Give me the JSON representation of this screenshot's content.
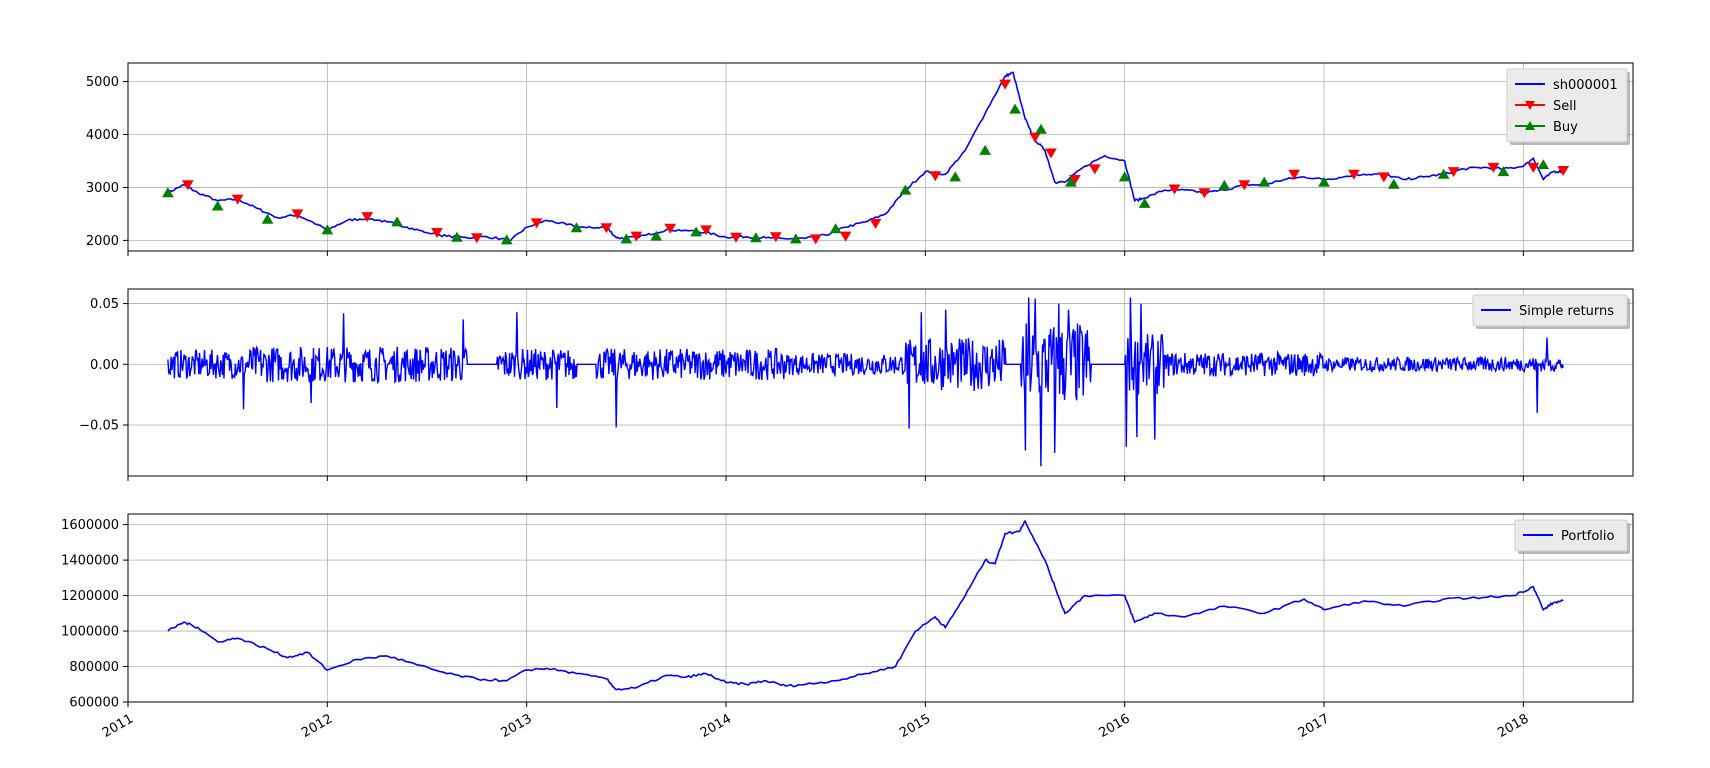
{
  "chart_data": [
    {
      "type": "line",
      "panel": "price",
      "x_tick_labels": [
        "2011",
        "2012",
        "2013",
        "2014",
        "2015",
        "2016",
        "2017",
        "2018"
      ],
      "xlim": [
        2011.0,
        2018.55
      ],
      "ylim": [
        1800,
        5350
      ],
      "y_ticks": [
        2000,
        3000,
        4000,
        5000
      ],
      "y_tick_labels": [
        "2000",
        "3000",
        "4000",
        "5000"
      ],
      "grid": true,
      "legend": "top-right",
      "series": [
        {
          "name": "sh000001",
          "color": "#0000ff",
          "x": [
            2011.2,
            2011.28,
            2011.35,
            2011.45,
            2011.55,
            2011.65,
            2011.75,
            2011.85,
            2011.95,
            2012.0,
            2012.1,
            2012.2,
            2012.3,
            2012.4,
            2012.5,
            2012.6,
            2012.7,
            2012.8,
            2012.92,
            2013.0,
            2013.1,
            2013.2,
            2013.3,
            2013.4,
            2013.45,
            2013.5,
            2013.6,
            2013.7,
            2013.8,
            2013.9,
            2014.0,
            2014.1,
            2014.2,
            2014.3,
            2014.4,
            2014.5,
            2014.6,
            2014.7,
            2014.8,
            2014.9,
            2015.0,
            2015.1,
            2015.2,
            2015.3,
            2015.4,
            2015.44,
            2015.5,
            2015.55,
            2015.6,
            2015.65,
            2015.7,
            2015.8,
            2015.9,
            2016.0,
            2016.05,
            2016.1,
            2016.2,
            2016.3,
            2016.4,
            2016.5,
            2016.6,
            2016.7,
            2016.8,
            2016.9,
            2017.0,
            2017.1,
            2017.2,
            2017.3,
            2017.4,
            2017.5,
            2017.6,
            2017.7,
            2017.8,
            2017.9,
            2018.0,
            2018.05,
            2018.1,
            2018.15,
            2018.2
          ],
          "values": [
            2900,
            3050,
            2900,
            2750,
            2780,
            2600,
            2430,
            2480,
            2300,
            2200,
            2380,
            2420,
            2350,
            2250,
            2150,
            2080,
            2050,
            2070,
            2000,
            2250,
            2380,
            2300,
            2240,
            2250,
            2050,
            2040,
            2100,
            2200,
            2190,
            2150,
            2060,
            2070,
            2050,
            2030,
            2040,
            2100,
            2250,
            2350,
            2500,
            2950,
            3300,
            3250,
            3700,
            4400,
            5100,
            5170,
            4300,
            3900,
            3700,
            3100,
            3100,
            3400,
            3600,
            3500,
            2750,
            2800,
            2950,
            2950,
            2900,
            2950,
            3050,
            3050,
            3150,
            3200,
            3150,
            3200,
            3250,
            3250,
            3150,
            3200,
            3250,
            3350,
            3380,
            3350,
            3400,
            3550,
            3150,
            3300,
            3300
          ]
        },
        {
          "name": "Sell",
          "color": "#ff0000",
          "marker": "triangle-down",
          "x": [
            2011.3,
            2011.55,
            2011.85,
            2012.2,
            2012.55,
            2012.75,
            2013.05,
            2013.4,
            2013.55,
            2013.72,
            2013.9,
            2014.05,
            2014.25,
            2014.45,
            2014.6,
            2014.75,
            2015.05,
            2015.4,
            2015.55,
            2015.63,
            2015.75,
            2015.85,
            2016.25,
            2016.4,
            2016.6,
            2016.85,
            2017.15,
            2017.3,
            2017.65,
            2017.85,
            2018.05,
            2018.2
          ],
          "values": [
            3050,
            2780,
            2500,
            2450,
            2150,
            2050,
            2330,
            2240,
            2080,
            2230,
            2200,
            2060,
            2070,
            2030,
            2080,
            2320,
            3220,
            4950,
            3950,
            3650,
            3150,
            3350,
            2970,
            2900,
            3050,
            3250,
            3250,
            3200,
            3300,
            3380,
            3380,
            3320
          ]
        },
        {
          "name": "Buy",
          "color": "#008000",
          "marker": "triangle-up",
          "x": [
            2011.2,
            2011.45,
            2011.7,
            2012.0,
            2012.35,
            2012.65,
            2012.9,
            2013.25,
            2013.5,
            2013.65,
            2013.85,
            2014.15,
            2014.35,
            2014.55,
            2014.9,
            2015.15,
            2015.3,
            2015.45,
            2015.58,
            2015.73,
            2016.0,
            2016.1,
            2016.5,
            2016.7,
            2017.0,
            2017.35,
            2017.6,
            2017.9,
            2018.1
          ],
          "values": [
            2900,
            2650,
            2400,
            2200,
            2350,
            2060,
            2010,
            2240,
            2030,
            2080,
            2160,
            2050,
            2030,
            2220,
            2950,
            3200,
            3700,
            4480,
            4100,
            3100,
            3200,
            2700,
            3040,
            3100,
            3100,
            3060,
            3250,
            3300,
            3430
          ]
        }
      ]
    },
    {
      "type": "line",
      "panel": "returns",
      "xlim": [
        2011.0,
        2018.55
      ],
      "ylim": [
        -0.092,
        0.062
      ],
      "y_ticks": [
        -0.05,
        0,
        0.05
      ],
      "y_tick_labels": [
        "−0.05",
        "0.00",
        "0.05"
      ],
      "grid": true,
      "legend": "top-right",
      "series": [
        {
          "name": "Simple returns",
          "color": "#0000ff",
          "note": "daily returns; flat at 0.00 during 2012.68-2012.85, 2013.25-2013.35, 2015.4-2015.48, 2015.83-2016.0",
          "amplitude_segments": [
            {
              "from": 2011.2,
              "to": 2011.6,
              "amp": 0.012
            },
            {
              "from": 2011.6,
              "to": 2012.7,
              "amp": 0.015
            },
            {
              "from": 2012.85,
              "to": 2014.3,
              "amp": 0.013
            },
            {
              "from": 2014.3,
              "to": 2014.9,
              "amp": 0.009
            },
            {
              "from": 2014.9,
              "to": 2015.4,
              "amp": 0.022
            },
            {
              "from": 2015.48,
              "to": 2015.83,
              "amp": 0.035
            },
            {
              "from": 2016.0,
              "to": 2016.2,
              "amp": 0.025
            },
            {
              "from": 2016.2,
              "to": 2017.0,
              "amp": 0.01
            },
            {
              "from": 2017.0,
              "to": 2018.2,
              "amp": 0.006
            }
          ],
          "spikes": [
            [
              2011.58,
              -0.037
            ],
            [
              2011.92,
              -0.032
            ],
            [
              2012.08,
              0.042
            ],
            [
              2012.68,
              0.037
            ],
            [
              2012.95,
              0.043
            ],
            [
              2013.15,
              -0.036
            ],
            [
              2013.45,
              -0.052
            ],
            [
              2014.92,
              -0.053
            ],
            [
              2014.98,
              0.043
            ],
            [
              2015.1,
              0.045
            ],
            [
              2015.5,
              -0.071
            ],
            [
              2015.52,
              0.055
            ],
            [
              2015.55,
              0.054
            ],
            [
              2015.58,
              -0.084
            ],
            [
              2015.65,
              -0.073
            ],
            [
              2015.67,
              0.05
            ],
            [
              2015.72,
              0.045
            ],
            [
              2016.01,
              -0.068
            ],
            [
              2016.03,
              0.055
            ],
            [
              2016.06,
              -0.06
            ],
            [
              2016.08,
              0.05
            ],
            [
              2016.15,
              -0.062
            ],
            [
              2018.07,
              -0.04
            ],
            [
              2018.12,
              0.022
            ]
          ]
        }
      ]
    },
    {
      "type": "line",
      "panel": "portfolio",
      "xlim": [
        2011.0,
        2018.55
      ],
      "ylim": [
        600000,
        1660000
      ],
      "y_ticks": [
        600000,
        800000,
        1000000,
        1200000,
        1400000,
        1600000
      ],
      "y_tick_labels": [
        "600000",
        "800000",
        "1000000",
        "1200000",
        "1400000",
        "1600000"
      ],
      "grid": true,
      "legend": "top-right",
      "series": [
        {
          "name": "Portfolio",
          "color": "#0000ff",
          "x": [
            2011.2,
            2011.28,
            2011.35,
            2011.45,
            2011.55,
            2011.7,
            2011.8,
            2011.9,
            2012.0,
            2012.15,
            2012.3,
            2012.45,
            2012.6,
            2012.75,
            2012.9,
            2013.0,
            2013.1,
            2013.25,
            2013.4,
            2013.45,
            2013.55,
            2013.7,
            2013.8,
            2013.9,
            2014.0,
            2014.1,
            2014.2,
            2014.3,
            2014.4,
            2014.55,
            2014.7,
            2014.85,
            2014.95,
            2015.05,
            2015.1,
            2015.2,
            2015.3,
            2015.35,
            2015.4,
            2015.47,
            2015.5,
            2015.6,
            2015.65,
            2015.7,
            2015.8,
            2016.0,
            2016.05,
            2016.15,
            2016.3,
            2016.5,
            2016.7,
            2016.9,
            2017.0,
            2017.2,
            2017.4,
            2017.6,
            2017.8,
            2017.95,
            2018.05,
            2018.1,
            2018.15,
            2018.2
          ],
          "values": [
            1000000,
            1050000,
            1020000,
            940000,
            960000,
            900000,
            850000,
            880000,
            780000,
            840000,
            860000,
            810000,
            760000,
            730000,
            720000,
            780000,
            790000,
            760000,
            730000,
            670000,
            680000,
            750000,
            740000,
            760000,
            710000,
            700000,
            720000,
            690000,
            700000,
            720000,
            760000,
            800000,
            1000000,
            1080000,
            1020000,
            1200000,
            1400000,
            1380000,
            1550000,
            1560000,
            1620000,
            1400000,
            1250000,
            1100000,
            1200000,
            1200000,
            1050000,
            1100000,
            1080000,
            1140000,
            1100000,
            1180000,
            1120000,
            1170000,
            1140000,
            1180000,
            1190000,
            1200000,
            1250000,
            1120000,
            1160000,
            1170000
          ]
        }
      ]
    }
  ]
}
